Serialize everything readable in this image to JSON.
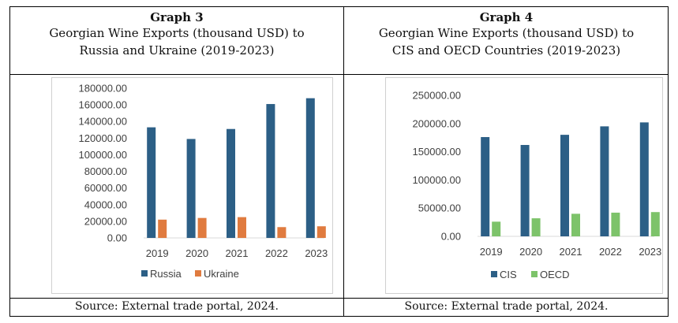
{
  "colors": {
    "russia": "#2c5f86",
    "ukraine": "#e07b3f",
    "cis": "#2c5f86",
    "oecd": "#7dc36a",
    "axis_text": "#404040"
  },
  "panels": [
    {
      "graph_label": "Graph 3",
      "title_line1": "Georgian Wine Exports (thousand USD) to",
      "title_line2": "Russia and Ukraine (2019-2023)",
      "source": "Source: External trade portal, 2024."
    },
    {
      "graph_label": "Graph 4",
      "title_line1": "Georgian Wine Exports (thousand USD) to",
      "title_line2": "CIS and OECD Countries (2019-2023)",
      "source": "Source: External trade portal, 2024."
    }
  ],
  "chart_data": [
    {
      "type": "bar",
      "categories": [
        "2019",
        "2020",
        "2021",
        "2022",
        "2023"
      ],
      "series": [
        {
          "name": "Russia",
          "values": [
            133000,
            119000,
            131000,
            161000,
            168000
          ]
        },
        {
          "name": "Ukraine",
          "values": [
            22000,
            24000,
            25000,
            13000,
            14000
          ]
        }
      ],
      "ylim": [
        0,
        180000
      ],
      "yticks": [
        "0.00",
        "20000.00",
        "40000.00",
        "60000.00",
        "80000.00",
        "100000.00",
        "120000.00",
        "140000.00",
        "160000.00",
        "180000.00"
      ],
      "grid": false,
      "legend": "bottom"
    },
    {
      "type": "bar",
      "categories": [
        "2019",
        "2020",
        "2021",
        "2022",
        "2023"
      ],
      "series": [
        {
          "name": "CIS",
          "values": [
            176000,
            162000,
            180000,
            195000,
            202000
          ]
        },
        {
          "name": "OECD",
          "values": [
            26000,
            32000,
            40000,
            42000,
            43000
          ]
        }
      ],
      "ylim": [
        0,
        250000
      ],
      "yticks": [
        "0.00",
        "50000.00",
        "100000.00",
        "150000.00",
        "200000.00",
        "250000.00"
      ],
      "grid": false,
      "legend": "bottom"
    }
  ]
}
